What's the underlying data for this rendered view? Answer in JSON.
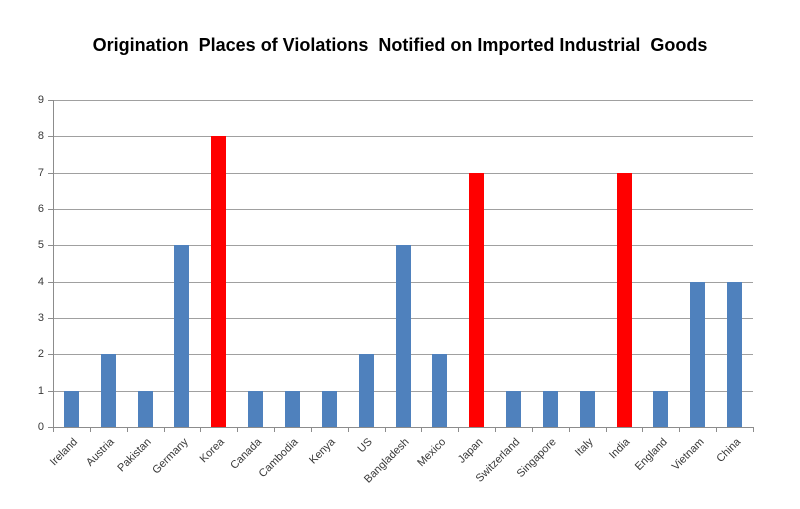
{
  "chart_data": {
    "type": "bar",
    "title": "Origination  Places of Violations  Notified on Imported Industrial  Goods",
    "categories": [
      "Ireland",
      "Austria",
      "Pakistan",
      "Germany",
      "Korea",
      "Canada",
      "Cambodia",
      "Kenya",
      "US",
      "Bangladesh",
      "Mexico",
      "Japan",
      "Switzerland",
      "Singapore",
      "Italy",
      "India",
      "England",
      "Vietnam",
      "China"
    ],
    "values": [
      1,
      2,
      1,
      5,
      8,
      1,
      1,
      1,
      2,
      5,
      2,
      7,
      1,
      1,
      1,
      7,
      1,
      4,
      4
    ],
    "highlighted": [
      "Korea",
      "Japan",
      "India"
    ],
    "bar_color": "#4f81bd",
    "highlight_color": "#ff0000",
    "xlabel": "",
    "ylabel": "",
    "ylim": [
      0,
      9
    ],
    "ytick_interval": 1,
    "yticks": [
      0,
      1,
      2,
      3,
      4,
      5,
      6,
      7,
      8,
      9
    ],
    "grid": "horizontal",
    "legend": "none",
    "gridline_color": "#a0a0a0",
    "axis_color": "#8c8c8c",
    "label_color": "#383838"
  }
}
